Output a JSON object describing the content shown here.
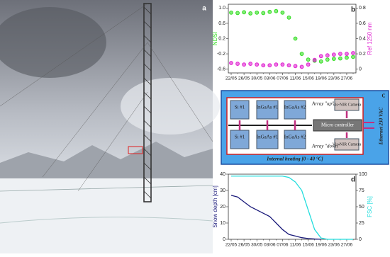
{
  "panel_label_a": "a",
  "chart_data": [
    {
      "type": "scatter",
      "panel_label": "b",
      "ylabel": "NDSI",
      "y2label": "Ref 1250 nm",
      "categories": [
        "22/05",
        null,
        "26/05",
        null,
        "30/05",
        null,
        "03/06",
        null,
        "07/06",
        null,
        "11/06",
        null,
        "15/06",
        null,
        "19/06",
        null,
        "23/06",
        null,
        "27/06",
        null
      ],
      "ylim": [
        -0.7,
        1.1
      ],
      "yticks": [
        {
          "value": 1,
          "label": "1.0"
        },
        0.6,
        0.2,
        -0.2,
        -0.6
      ],
      "y2lim": [
        -0.05,
        0.85
      ],
      "y2ticks": [
        0.8,
        0.6,
        0.4,
        0.2,
        0
      ],
      "series": [
        {
          "name": "NDSI",
          "color": "#33dd22",
          "values": [
            0.88,
            0.87,
            0.89,
            0.86,
            0.88,
            0.87,
            0.9,
            0.92,
            0.88,
            0.75,
            0.2,
            -0.2,
            -0.35,
            -0.38,
            -0.4,
            -0.35,
            -0.33,
            -0.32,
            -0.3,
            -0.28
          ]
        },
        {
          "name": "Ref 1250 nm",
          "color": "#e020d0",
          "axis": "y2",
          "values": [
            0.08,
            0.07,
            0.06,
            0.07,
            0.06,
            0.05,
            0.05,
            0.06,
            0.06,
            0.05,
            0.04,
            0.03,
            0.06,
            0.12,
            0.17,
            0.18,
            0.19,
            0.2,
            0.2,
            0.21
          ]
        }
      ]
    },
    {
      "type": "line",
      "panel_label": "d",
      "ylabel": "Snow depth [cm]",
      "y2label": "FSC [%]",
      "categories": [
        "22/05",
        null,
        "26/05",
        null,
        "30/05",
        null,
        "03/06",
        null,
        "07/06",
        null,
        "11/06",
        null,
        "15/06",
        null,
        "19/06",
        null,
        "23/06",
        null,
        "27/06",
        null
      ],
      "ylim": [
        0,
        40
      ],
      "yticks": [
        0,
        10,
        20,
        30,
        40
      ],
      "y2lim": [
        0,
        100
      ],
      "y2ticks": [
        0,
        25,
        50,
        75,
        100
      ],
      "series": [
        {
          "name": "Snow depth [cm]",
          "color": "#1a1a7a",
          "values": [
            27,
            26,
            23,
            20,
            18,
            16,
            14,
            10,
            6,
            3,
            2,
            1,
            0.5,
            0.2,
            0,
            null,
            null,
            null,
            null,
            null
          ]
        },
        {
          "name": "FSC [%]",
          "color": "#22dddd",
          "axis": "y2",
          "values": [
            97,
            97,
            97,
            97,
            97,
            97,
            97,
            97,
            97,
            95,
            88,
            75,
            45,
            15,
            2,
            0,
            0,
            0,
            0,
            0
          ]
        }
      ]
    }
  ],
  "diagram": {
    "panel_label": "C",
    "sensors_up": [
      "Si #1",
      "InGaAs #1",
      "InGaAs #2"
    ],
    "sensors_down": [
      "Si #1",
      "InGaAs #1",
      "InGaAs #2"
    ],
    "camera_up": "Vis-NIR Camera",
    "camera_down": "Vis-NIR Camera",
    "array_up": "Array \"up\"",
    "array_down": "Array \"down\"",
    "controller": "Micro controller",
    "heating": "Internal heating [0 - 40 °C]",
    "power": "Ethernet 230 VAC"
  }
}
